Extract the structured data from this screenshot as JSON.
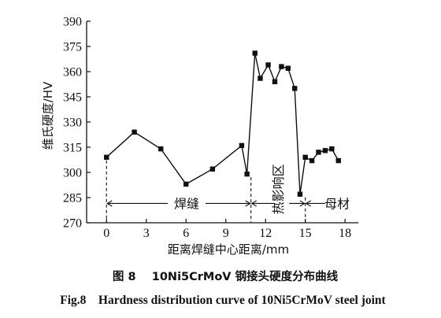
{
  "chart_data": {
    "type": "line",
    "title": "",
    "xlabel": "距离焊缝中心距离/mm",
    "ylabel": "维氏硬度/HV",
    "xlim": [
      -1.5,
      19.0
    ],
    "ylim": [
      270,
      390
    ],
    "xticks": [
      0,
      3,
      6,
      9,
      12,
      15,
      18
    ],
    "yticks": [
      270,
      285,
      300,
      315,
      330,
      345,
      360,
      375,
      390
    ],
    "grid": false,
    "series": [
      {
        "name": "",
        "x": [
          0,
          2.1,
          4.1,
          6.0,
          8.0,
          10.2,
          10.6,
          11.2,
          11.6,
          12.2,
          12.7,
          13.2,
          13.7,
          14.2,
          14.6,
          15.0,
          15.5,
          16.0,
          16.5,
          17.0,
          17.5
        ],
        "y": [
          309,
          324,
          314,
          293,
          302,
          316,
          299,
          371,
          356,
          364,
          354,
          363,
          362,
          350,
          287,
          309,
          307,
          312,
          313,
          314,
          307
        ]
      }
    ],
    "boundaries_x": [
      0,
      10.9,
      15.0
    ],
    "zones": [
      {
        "label": "焊缝",
        "from": 0,
        "to": 10.9
      },
      {
        "label": "热影响区",
        "from": 10.9,
        "to": 15.0
      },
      {
        "label": "母材",
        "from": 15.0,
        "to": 19.0
      }
    ]
  },
  "caption": {
    "zh": "图 8    10Ni5CrMoV 钢接头硬度分布曲线",
    "en": "Fig.8    Hardness distribution curve of 10Ni5CrMoV steel joint"
  }
}
